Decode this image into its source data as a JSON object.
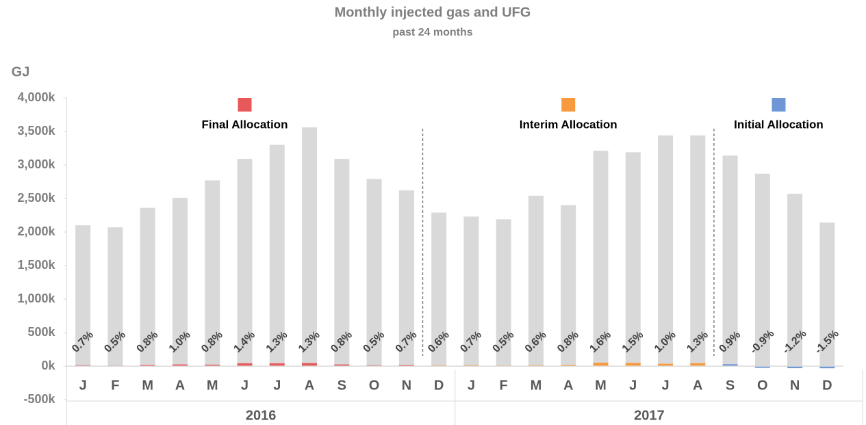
{
  "chart_data": {
    "type": "bar",
    "title": "Monthly injected gas and UFG",
    "subtitle": "past 24 months",
    "y_label": "GJ",
    "categories": [
      "J",
      "F",
      "M",
      "A",
      "M",
      "J",
      "J",
      "A",
      "S",
      "O",
      "N",
      "D",
      "J",
      "F",
      "M",
      "A",
      "M",
      "J",
      "J",
      "A",
      "S",
      "O",
      "N",
      "D"
    ],
    "years": [
      "2016",
      "2017"
    ],
    "values": [
      2100000,
      2070000,
      2360000,
      2510000,
      2770000,
      3090000,
      3300000,
      3560000,
      3090000,
      2790000,
      2620000,
      2290000,
      2230000,
      2190000,
      2540000,
      2400000,
      3210000,
      3190000,
      3440000,
      3440000,
      3140000,
      2870000,
      2570000,
      2140000
    ],
    "color": "#d9d9d9",
    "series": [
      {
        "name": "Final Allocation",
        "color": "#e8585a",
        "values": [
          14700,
          10350,
          18880,
          25100,
          22160,
          43260,
          42900,
          46280,
          24720,
          13950,
          18340,
          null,
          null,
          null,
          null,
          null,
          null,
          null,
          null,
          null,
          null,
          null,
          null,
          null
        ]
      },
      {
        "name": "Interim Allocation",
        "color": "#f79a3e",
        "values": [
          null,
          null,
          null,
          null,
          null,
          null,
          null,
          null,
          null,
          null,
          null,
          13740,
          15610,
          10950,
          15240,
          19200,
          51360,
          47850,
          34400,
          44720,
          null,
          null,
          null,
          null
        ]
      },
      {
        "name": "Initial Allocation",
        "color": "#6f96d6",
        "values": [
          null,
          null,
          null,
          null,
          null,
          null,
          null,
          null,
          null,
          null,
          null,
          null,
          null,
          null,
          null,
          null,
          null,
          null,
          null,
          null,
          28260,
          -25830,
          -30840,
          -32100
        ]
      }
    ],
    "ufg_labels": [
      "0.7%",
      "0.5%",
      "0.8%",
      "1.0%",
      "0.8%",
      "1.4%",
      "1.3%",
      "1.3%",
      "0.8%",
      "0.5%",
      "0.7%",
      "0.6%",
      "0.7%",
      "0.5%",
      "0.6%",
      "0.8%",
      "1.6%",
      "1.5%",
      "1.0%",
      "1.3%",
      "0.9%",
      "-0.9%",
      "-1.2%",
      "-1.5%"
    ],
    "ylim": [
      -500000,
      4000000
    ],
    "yticks": [
      {
        "value": -500000,
        "label": "-500k"
      },
      {
        "value": 0,
        "label": "0k"
      },
      {
        "value": 500000,
        "label": "500k"
      },
      {
        "value": 1000000,
        "label": "1,000k"
      },
      {
        "value": 1500000,
        "label": "1,500k"
      },
      {
        "value": 2000000,
        "label": "2,000k"
      },
      {
        "value": 2500000,
        "label": "2,500k"
      },
      {
        "value": 3000000,
        "label": "3,000k"
      },
      {
        "value": 3500000,
        "label": "3,500k"
      },
      {
        "value": 4000000,
        "label": "4,000k"
      }
    ],
    "grid": false
  }
}
